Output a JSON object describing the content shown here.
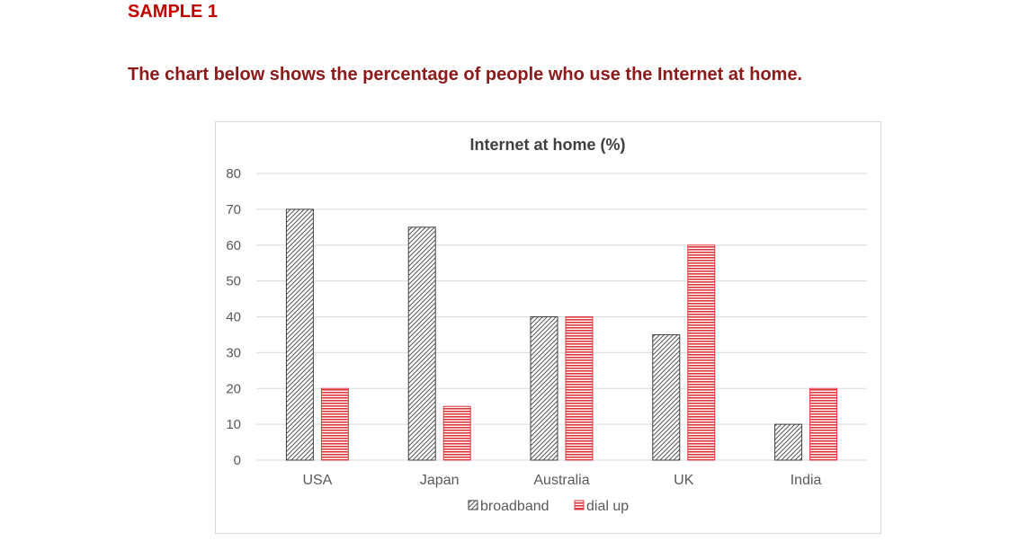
{
  "header": {
    "sample_label": "SAMPLE 1",
    "intro": "The chart below shows the percentage of people who use the Internet at home."
  },
  "chart_data": {
    "type": "bar",
    "title": "Internet at home (%)",
    "xlabel": "",
    "ylabel": "",
    "categories": [
      "USA",
      "Japan",
      "Australia",
      "UK",
      "India"
    ],
    "series": [
      {
        "name": "broadband",
        "values": [
          70,
          65,
          40,
          35,
          10
        ],
        "color": "#555555",
        "pattern": "diagonal-hatch"
      },
      {
        "name": "dial up",
        "values": [
          20,
          15,
          40,
          60,
          20
        ],
        "color": "#e0383e",
        "pattern": "horizontal-lines"
      }
    ],
    "ylim": [
      0,
      80
    ],
    "yticks": [
      0,
      10,
      20,
      30,
      40,
      50,
      60,
      70,
      80
    ],
    "grid": true,
    "legend": "bottom"
  }
}
